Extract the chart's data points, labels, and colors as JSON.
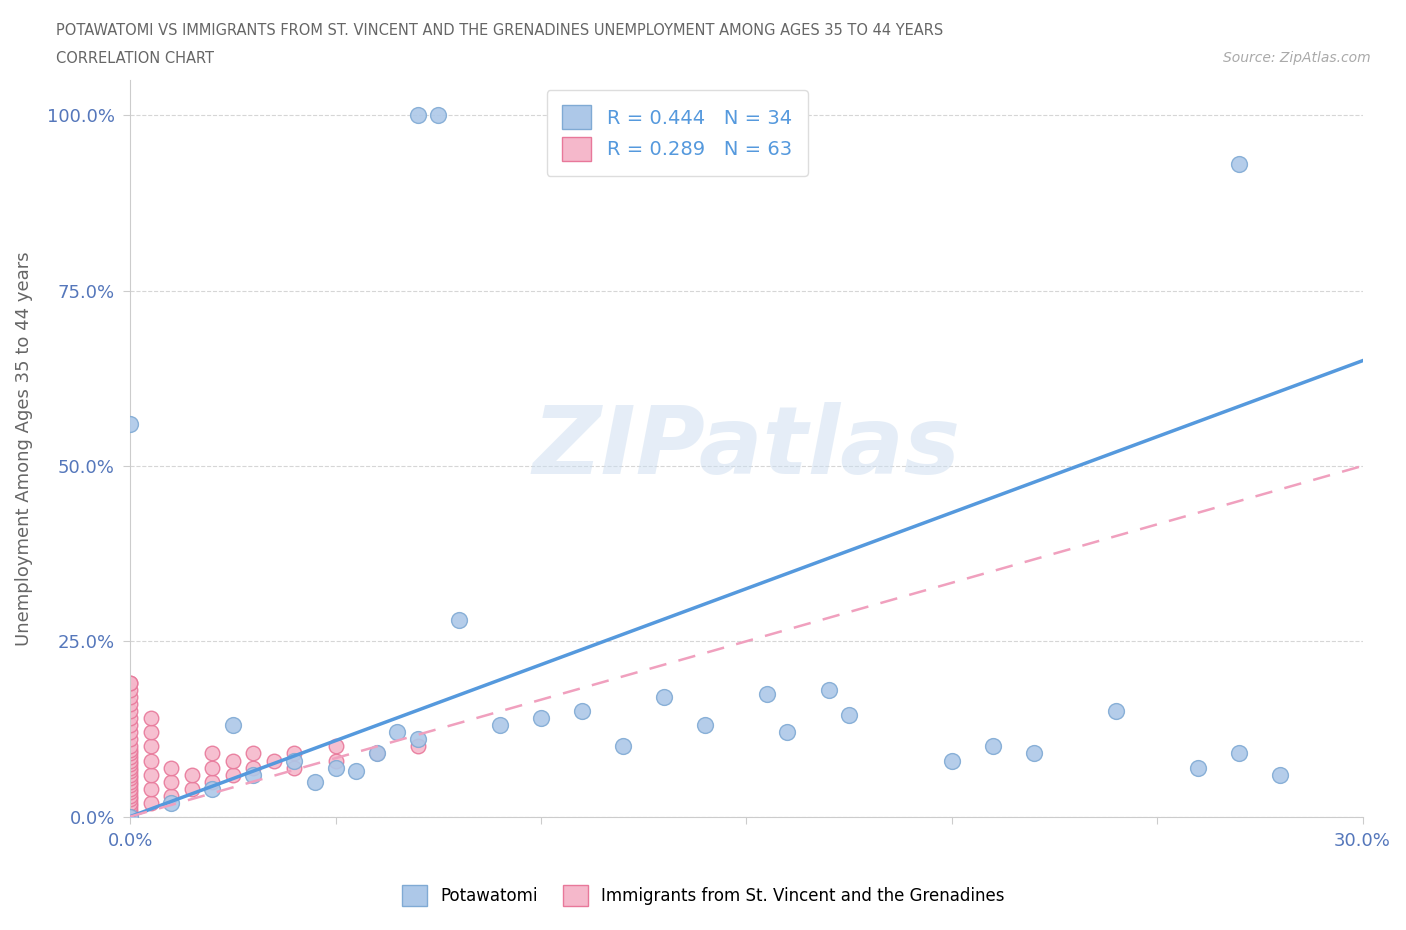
{
  "title_line1": "POTAWATOMI VS IMMIGRANTS FROM ST. VINCENT AND THE GRENADINES UNEMPLOYMENT AMONG AGES 35 TO 44 YEARS",
  "title_line2": "CORRELATION CHART",
  "source_text": "Source: ZipAtlas.com",
  "ylabel": "Unemployment Among Ages 35 to 44 years",
  "xlim": [
    0,
    0.3
  ],
  "ylim": [
    0,
    1.05
  ],
  "blue_R": 0.444,
  "blue_N": 34,
  "pink_R": 0.289,
  "pink_N": 63,
  "blue_color": "#adc8e8",
  "pink_color": "#f5b8cb",
  "blue_edge_color": "#80aad4",
  "pink_edge_color": "#e8789a",
  "blue_line_color": "#5599dd",
  "pink_line_color": "#f0a0be",
  "legend_blue_label": "Potawatomi",
  "legend_pink_label": "Immigrants from St. Vincent and the Grenadines",
  "watermark": "ZIPatlas",
  "background_color": "#ffffff",
  "blue_x": [
    0.07,
    0.075,
    0.27,
    0.0,
    0.01,
    0.02,
    0.025,
    0.03,
    0.04,
    0.045,
    0.05,
    0.055,
    0.06,
    0.065,
    0.07,
    0.08,
    0.09,
    0.1,
    0.11,
    0.12,
    0.13,
    0.14,
    0.155,
    0.16,
    0.17,
    0.175,
    0.2,
    0.21,
    0.22,
    0.24,
    0.26,
    0.27,
    0.28,
    0.0
  ],
  "blue_y": [
    1.0,
    1.0,
    0.93,
    0.0,
    0.02,
    0.04,
    0.13,
    0.06,
    0.08,
    0.05,
    0.07,
    0.065,
    0.09,
    0.12,
    0.11,
    0.28,
    0.13,
    0.14,
    0.15,
    0.1,
    0.17,
    0.13,
    0.175,
    0.12,
    0.18,
    0.145,
    0.08,
    0.1,
    0.09,
    0.15,
    0.07,
    0.09,
    0.06,
    0.56
  ],
  "pink_x": [
    0.0,
    0.0,
    0.0,
    0.0,
    0.0,
    0.0,
    0.0,
    0.0,
    0.0,
    0.0,
    0.0,
    0.0,
    0.0,
    0.0,
    0.0,
    0.0,
    0.0,
    0.0,
    0.0,
    0.0,
    0.0,
    0.0,
    0.0,
    0.0,
    0.0,
    0.0,
    0.0,
    0.0,
    0.0,
    0.0,
    0.005,
    0.005,
    0.005,
    0.005,
    0.005,
    0.005,
    0.005,
    0.01,
    0.01,
    0.01,
    0.015,
    0.015,
    0.02,
    0.02,
    0.02,
    0.025,
    0.025,
    0.03,
    0.03,
    0.035,
    0.04,
    0.04,
    0.05,
    0.05,
    0.06,
    0.07,
    0.0,
    0.0,
    0.0,
    0.0,
    0.0,
    0.0,
    0.0
  ],
  "pink_y": [
    0.0,
    0.005,
    0.01,
    0.015,
    0.02,
    0.025,
    0.03,
    0.035,
    0.04,
    0.045,
    0.05,
    0.055,
    0.06,
    0.065,
    0.07,
    0.075,
    0.08,
    0.085,
    0.09,
    0.095,
    0.1,
    0.11,
    0.12,
    0.13,
    0.14,
    0.15,
    0.16,
    0.17,
    0.18,
    0.19,
    0.02,
    0.04,
    0.06,
    0.08,
    0.1,
    0.12,
    0.14,
    0.03,
    0.05,
    0.07,
    0.04,
    0.06,
    0.05,
    0.07,
    0.09,
    0.06,
    0.08,
    0.07,
    0.09,
    0.08,
    0.07,
    0.09,
    0.08,
    0.1,
    0.09,
    0.1,
    0.0,
    0.0,
    0.0,
    0.0,
    0.0,
    0.0,
    0.19
  ],
  "blue_line_x0": 0.0,
  "blue_line_x1": 0.3,
  "blue_line_y0": 0.0,
  "blue_line_y1": 0.65,
  "pink_line_y0": 0.0,
  "pink_line_y1": 0.5
}
